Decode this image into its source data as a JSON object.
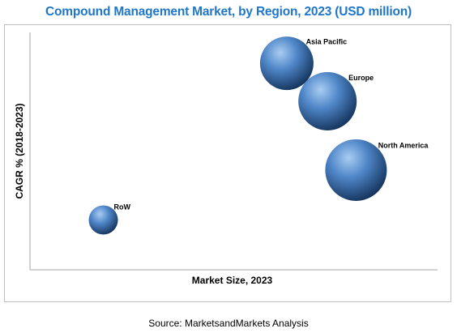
{
  "chart_data": {
    "type": "bubble",
    "title": "Compound Management Market, by Region, 2023 (USD million)",
    "xlabel": "Market Size, 2023",
    "ylabel": "CAGR % (2018-2023)",
    "xlim": [
      0,
      100
    ],
    "ylim": [
      0,
      100
    ],
    "grid": false,
    "legend": "none",
    "bubble_color": "#4a7fc1",
    "points": [
      {
        "label": "Asia Pacific",
        "x": 63,
        "y": 87,
        "size": 66
      },
      {
        "label": "Europe",
        "x": 73,
        "y": 71,
        "size": 72
      },
      {
        "label": "North America",
        "x": 80,
        "y": 42,
        "size": 76
      },
      {
        "label": "RoW",
        "x": 18,
        "y": 21,
        "size": 36
      }
    ]
  },
  "source": "Source: MarketsandMarkets Analysis"
}
